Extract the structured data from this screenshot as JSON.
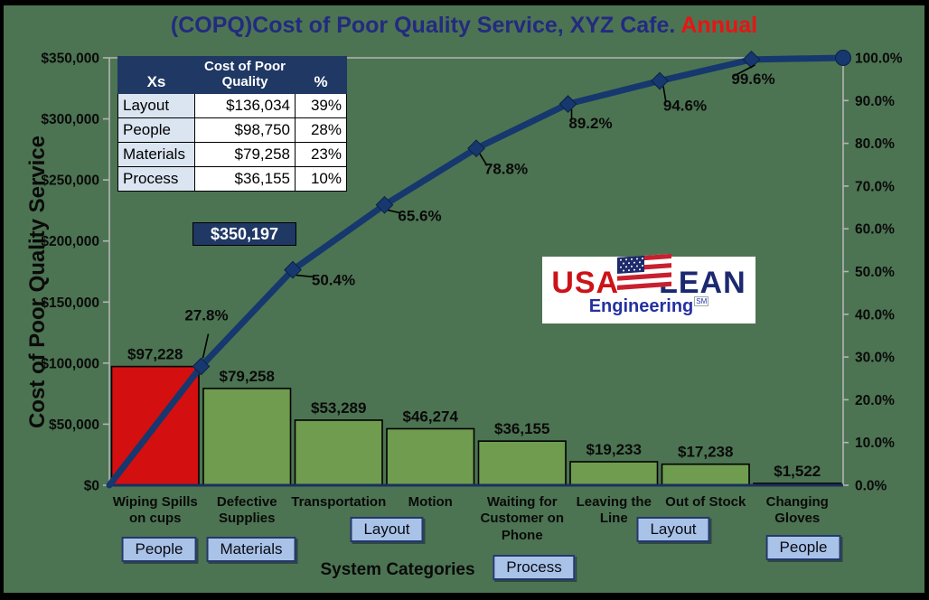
{
  "title": {
    "main": "(COPQ)Cost of Poor Quality Service, XYZ Cafe. ",
    "highlight": "Annual"
  },
  "left_axis": {
    "title": "Cost of Poor Quality Service",
    "ticks": [
      "$0",
      "$50,000",
      "$100,000",
      "$150,000",
      "$200,000",
      "$250,000",
      "$300,000",
      "$350,000"
    ]
  },
  "right_axis": {
    "ticks": [
      "0.0%",
      "10.0%",
      "20.0%",
      "30.0%",
      "40.0%",
      "50.0%",
      "60.0%",
      "70.0%",
      "80.0%",
      "90.0%",
      "100.0%"
    ]
  },
  "x_axis": {
    "title": "System Categories"
  },
  "chart_data": {
    "type": "pareto (bar + cumulative line)",
    "title": "(COPQ)Cost of Poor Quality Service, XYZ Cafe. Annual",
    "xlabel": "System Categories",
    "ylabel": "Cost of Poor Quality Service",
    "ylim": [
      0,
      350000
    ],
    "y2lim": [
      0,
      100
    ],
    "categories": [
      "Wiping Spills on cups",
      "Defective Supplies",
      "Transportation",
      "Motion",
      "Waiting for Customer on Phone",
      "Leaving the Line",
      "Out of Stock",
      "Changing Gloves"
    ],
    "category_label_lines": [
      [
        "Wiping Spills",
        "on cups"
      ],
      [
        "Defective",
        "Supplies"
      ],
      [
        "Transportation"
      ],
      [
        "Motion"
      ],
      [
        "Waiting for",
        "Customer on",
        "Phone"
      ],
      [
        "Leaving the",
        "Line"
      ],
      [
        "Out of Stock"
      ],
      [
        "Changing",
        "Gloves"
      ]
    ],
    "values": [
      97228,
      79258,
      53289,
      46274,
      36155,
      19233,
      17238,
      1522
    ],
    "bar_value_labels": [
      "$97,228",
      "$79,258",
      "$53,289",
      "$46,274",
      "$36,155",
      "$19,233",
      "$17,238",
      "$1,522"
    ],
    "cumulative_pct": [
      27.8,
      50.4,
      65.6,
      78.8,
      89.2,
      94.6,
      99.6,
      100.0
    ],
    "cumulative_point_labels": [
      "27.8%",
      "50.4%",
      "65.6%",
      "78.8%",
      "89.2%",
      "94.6%",
      "99.6%"
    ],
    "legend": "none",
    "grid": "off"
  },
  "inset_table": {
    "col_headers": [
      "Xs",
      "Cost of Poor Quality",
      "%"
    ],
    "rows": [
      [
        "Layout",
        "$136,034",
        "39%"
      ],
      [
        "People",
        "$98,750",
        "28%"
      ],
      [
        "Materials",
        "$79,258",
        "23%"
      ],
      [
        "Process",
        "$36,155",
        "10%"
      ]
    ],
    "total": "$350,197"
  },
  "category_tags": [
    {
      "label": "People"
    },
    {
      "label": "Materials"
    },
    {
      "label": "Layout"
    },
    {
      "label": "Process"
    },
    {
      "label": "Layout"
    },
    {
      "label": "People"
    }
  ],
  "logo": {
    "usa": "USA",
    "lean": "LEAN",
    "engineering": "Engineering",
    "sm": "SM"
  },
  "colors": {
    "background": "#4c7452",
    "bar_green": "#6f9c4e",
    "bar_red": "#d40f10",
    "line_navy": "#16386e",
    "title_blue": "#232a80",
    "annual_red": "#e81414",
    "table_header_navy": "#1f3864",
    "table_first_col": "#dbe5f1",
    "tag_fill": "#a9c3e8",
    "tag_border": "#24386c",
    "axis_gray": "#b4b4b4"
  }
}
